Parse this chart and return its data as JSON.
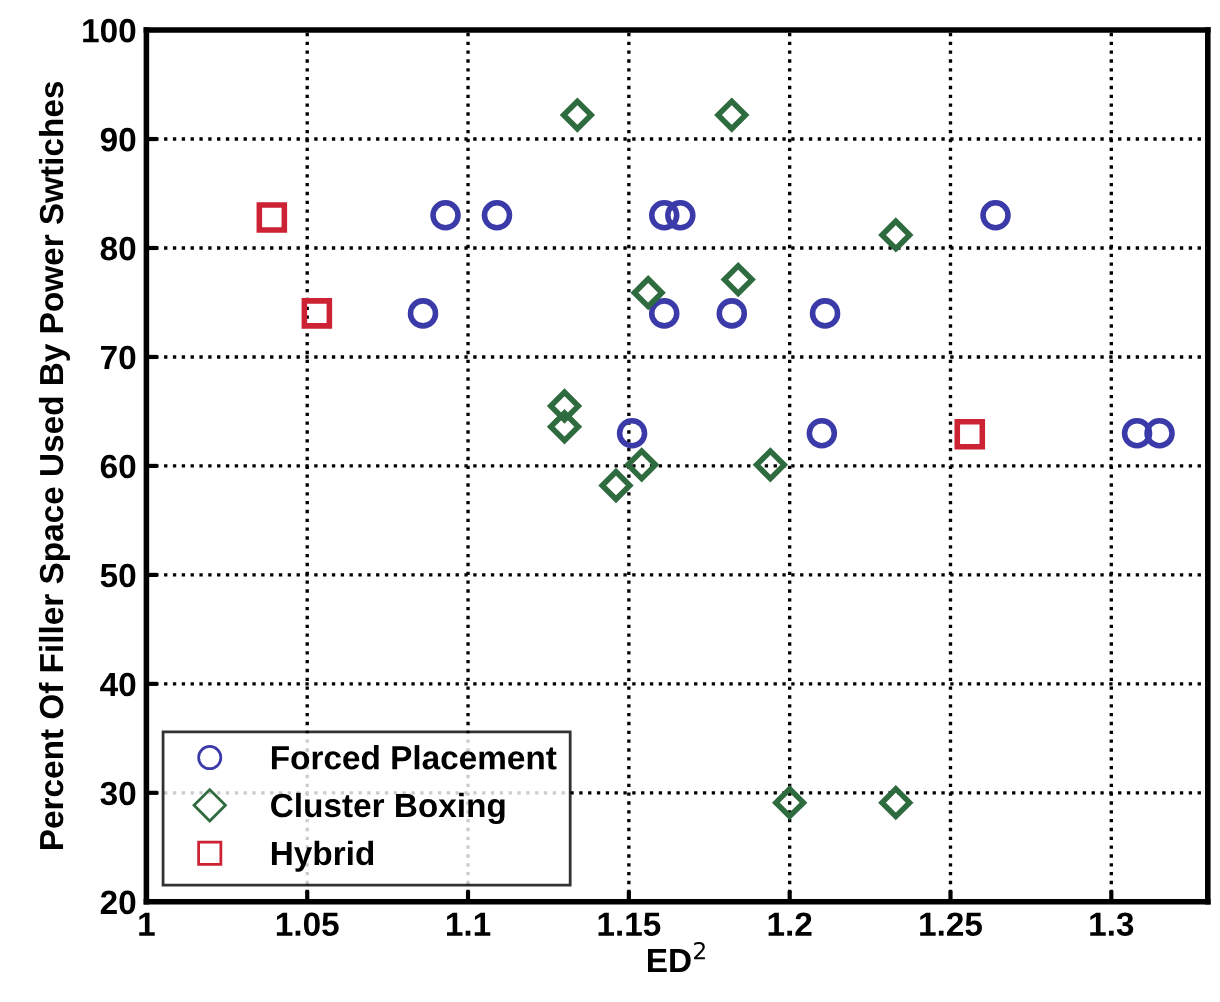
{
  "chart_data": {
    "type": "scatter",
    "xlabel": "ED$^{2}$",
    "ylabel": "Percent Of Filler Space Used By Power Swtiches",
    "xlim": [
      1,
      1.33
    ],
    "ylim": [
      20,
      100
    ],
    "xticks": [
      1,
      1.05,
      1.1,
      1.15,
      1.2,
      1.25,
      1.3
    ],
    "yticks": [
      20,
      30,
      40,
      50,
      60,
      70,
      80,
      90,
      100
    ],
    "grid": true,
    "legend": "bottom left",
    "series": [
      {
        "name": "Forced Placement",
        "color": "#3a3aa8",
        "marker": "circle",
        "x": [
          1.093,
          1.109,
          1.161,
          1.166,
          1.264,
          1.086,
          1.161,
          1.182,
          1.211,
          1.151,
          1.21,
          1.308,
          1.315
        ],
        "values": [
          83,
          83,
          83,
          83,
          83,
          74,
          74,
          74,
          74,
          63,
          63,
          63,
          63
        ]
      },
      {
        "name": "Cluster Boxing",
        "color": "#2e6b3e",
        "marker": "diamond",
        "x": [
          1.134,
          1.182,
          1.233,
          1.184,
          1.156,
          1.13,
          1.13,
          1.154,
          1.194,
          1.146,
          1.2,
          1.233
        ],
        "values": [
          92.2,
          92.2,
          81.2,
          77.1,
          75.9,
          65.5,
          63.6,
          60.1,
          60.1,
          58.2,
          29.1,
          29.1
        ]
      },
      {
        "name": "Hybrid",
        "color": "#cc2233",
        "marker": "square",
        "x": [
          1.039,
          1.053,
          1.256
        ],
        "values": [
          82.8,
          74,
          62.9
        ]
      }
    ]
  }
}
